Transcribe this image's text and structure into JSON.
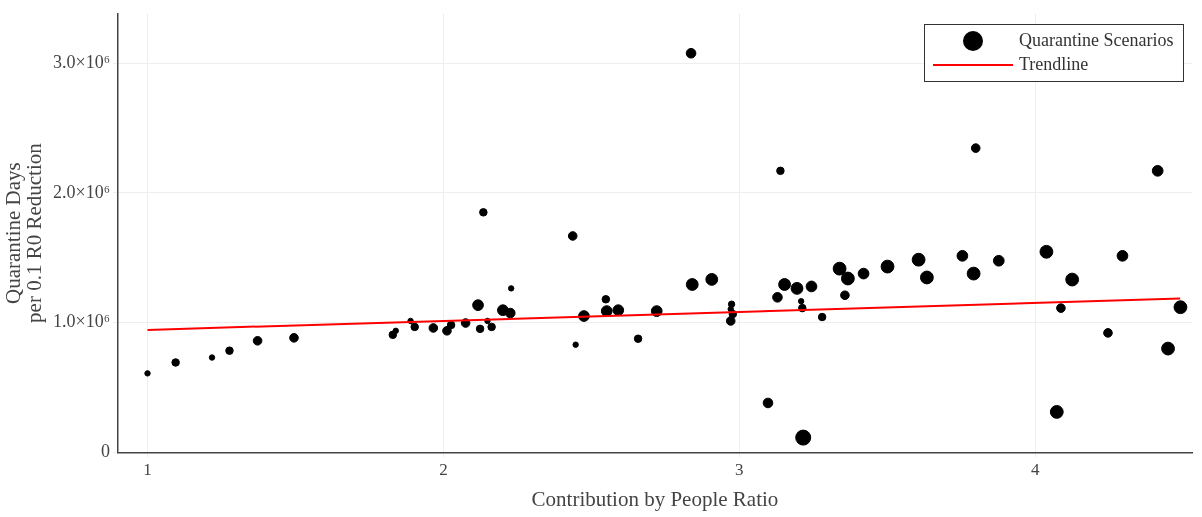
{
  "chart_data": {
    "type": "bubble",
    "xlabel": "Contribution by People Ratio",
    "ylabel": "Quarantine Days\nper 0.1 R0 Reduction",
    "xlim": [
      0.9,
      4.53
    ],
    "xticks": [
      1,
      2,
      3,
      4
    ],
    "ylim": [
      0,
      3380000
    ],
    "yticks": [
      {
        "value": 0,
        "label": "0"
      },
      {
        "value": 1000000,
        "label": "1.0×10⁶"
      },
      {
        "value": 2000000,
        "label": "2.0×10⁶"
      },
      {
        "value": 3000000,
        "label": "3.0×10⁶"
      }
    ],
    "grid": true,
    "legend": "top right",
    "series": [
      {
        "name": "Quarantine Scenarios",
        "type": "bubble",
        "marker": "circle",
        "color": "#000000",
        "x": [
          1.0,
          1.095,
          1.218,
          1.277,
          1.372,
          1.495,
          1.829,
          1.839,
          1.889,
          1.903,
          1.966,
          2.012,
          2.026,
          2.075,
          2.117,
          2.135,
          2.124,
          2.149,
          2.163,
          2.201,
          2.226,
          2.229,
          2.437,
          2.447,
          2.475,
          2.549,
          2.552,
          2.591,
          2.658,
          2.721,
          2.837,
          2.841,
          2.907,
          2.974,
          2.978,
          2.971,
          2.971,
          3.097,
          3.139,
          3.129,
          3.153,
          3.195,
          3.209,
          3.213,
          3.216,
          3.244,
          3.28,
          3.339,
          3.367,
          3.357,
          3.42,
          3.501,
          3.606,
          3.634,
          3.754,
          3.792,
          3.799,
          3.877,
          4.038,
          4.125,
          4.087,
          4.073,
          4.295,
          4.246,
          4.414,
          4.449,
          4.491
        ],
        "values": [
          609000,
          693000,
          731000,
          784000,
          860000,
          883000,
          906000,
          937000,
          1013000,
          967000,
          959000,
          937000,
          982000,
          997000,
          1135000,
          1850000,
          952000,
          1013000,
          967000,
          1096000,
          1074000,
          1264000,
          1668000,
          830000,
          1051000,
          1180000,
          1089000,
          1096000,
          876000,
          1089000,
          3076000,
          1294000,
          1333000,
          1142000,
          1066000,
          1013000,
          1104000,
          381000,
          2170000,
          1195000,
          1294000,
          1264000,
          1165000,
          1112000,
          114000,
          1279000,
          1043000,
          1416000,
          1340000,
          1211000,
          1378000,
          1432000,
          1485000,
          1348000,
          1515000,
          1378000,
          2345000,
          1477000,
          1546000,
          1332000,
          1112000,
          312000,
          1515000,
          921000,
          2170000,
          800000,
          1119000
        ],
        "sizes": [
          0.13,
          0.25,
          0.13,
          0.25,
          0.33,
          0.33,
          0.25,
          0.13,
          0.13,
          0.25,
          0.33,
          0.33,
          0.25,
          0.33,
          0.51,
          0.25,
          0.25,
          0.13,
          0.25,
          0.51,
          0.41,
          0.13,
          0.33,
          0.13,
          0.51,
          0.25,
          0.51,
          0.51,
          0.25,
          0.51,
          0.41,
          0.62,
          0.62,
          0.18,
          0.25,
          0.33,
          0.13,
          0.41,
          0.25,
          0.41,
          0.62,
          0.62,
          0.13,
          0.25,
          1,
          0.51,
          0.25,
          0.73,
          0.73,
          0.33,
          0.51,
          0.73,
          0.73,
          0.73,
          0.51,
          0.73,
          0.33,
          0.51,
          0.73,
          0.73,
          0.33,
          0.73,
          0.51,
          0.33,
          0.51,
          0.73,
          0.73
        ]
      },
      {
        "name": "Trendline",
        "type": "line",
        "color": "#ff0000",
        "x": [
          1,
          4.49
        ],
        "values": [
          944000,
          1186000
        ]
      }
    ]
  }
}
